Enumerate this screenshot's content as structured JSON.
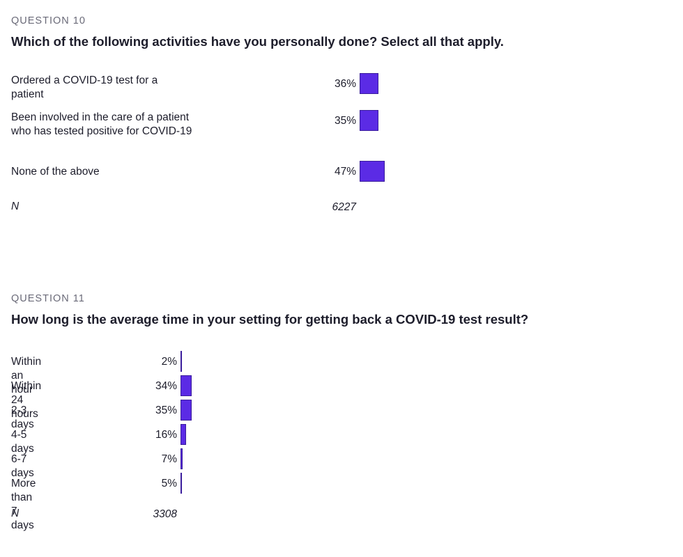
{
  "chart_data": [
    {
      "type": "bar",
      "question_number": "QUESTION 10",
      "title": "Which of the following activities have you personally done? Select all that apply.",
      "categories": [
        "Ordered a COVID-19 test for a patient",
        "Been involved in the care of a patient who has tested positive for COVID-19",
        "None of the above"
      ],
      "values": [
        36,
        35,
        47
      ],
      "value_labels": [
        "36%",
        "35%",
        "47%"
      ],
      "n_label": "N",
      "n_value": "6227",
      "orientation": "horizontal",
      "bar_color": "#5b2be5"
    },
    {
      "type": "bar",
      "question_number": "QUESTION 11",
      "title": "How long is the average time in your setting for getting back a COVID-19 test result?",
      "categories": [
        "Within an hour",
        "Within 24 hours",
        "2-3 days",
        "4-5 days",
        "6-7 days",
        "More than 7 days"
      ],
      "values": [
        2,
        34,
        35,
        16,
        7,
        5
      ],
      "value_labels": [
        "2%",
        "34%",
        "35%",
        "16%",
        "7%",
        "5%"
      ],
      "n_label": "N",
      "n_value": "3308",
      "orientation": "horizontal",
      "bar_color": "#5b2be5"
    }
  ]
}
